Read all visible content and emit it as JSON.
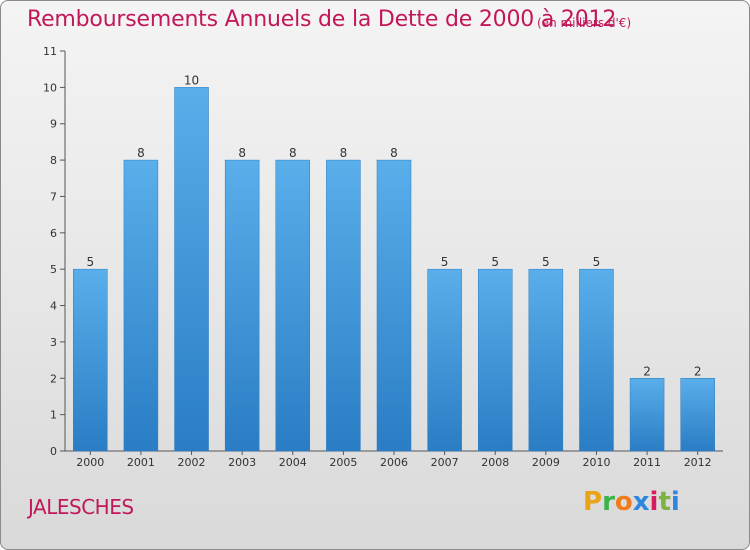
{
  "title": "Remboursements Annuels de la Dette de 2000 à 2012",
  "subtitle": "(en milliers d'€)",
  "commune": "JALESCHES",
  "logo_letters": [
    "P",
    "r",
    "o",
    "x",
    "i",
    "t",
    "i"
  ],
  "logo_colors": [
    "#e8a317",
    "#3ab34a",
    "#f07c1b",
    "#2e86de",
    "#d81b60",
    "#7cb342",
    "#2e86de"
  ],
  "colors": {
    "bar_top": "#5aaeea",
    "bar_bottom": "#2a7dc4",
    "title": "#c2185b"
  },
  "chart_data": {
    "type": "bar",
    "title": "Remboursements Annuels de la Dette de 2000 à 2012",
    "subtitle": "(en milliers d'€)",
    "categories": [
      "2000",
      "2001",
      "2002",
      "2003",
      "2004",
      "2005",
      "2006",
      "2007",
      "2008",
      "2009",
      "2010",
      "2011",
      "2012"
    ],
    "values": [
      5,
      8,
      10,
      8,
      8,
      8,
      8,
      5,
      5,
      5,
      5,
      2,
      2
    ],
    "ylim": [
      0,
      11
    ],
    "yticks": [
      0,
      1,
      2,
      3,
      4,
      5,
      6,
      7,
      8,
      9,
      10,
      11
    ],
    "xlabel": "",
    "ylabel": "",
    "grid": false,
    "data_labels": true
  }
}
